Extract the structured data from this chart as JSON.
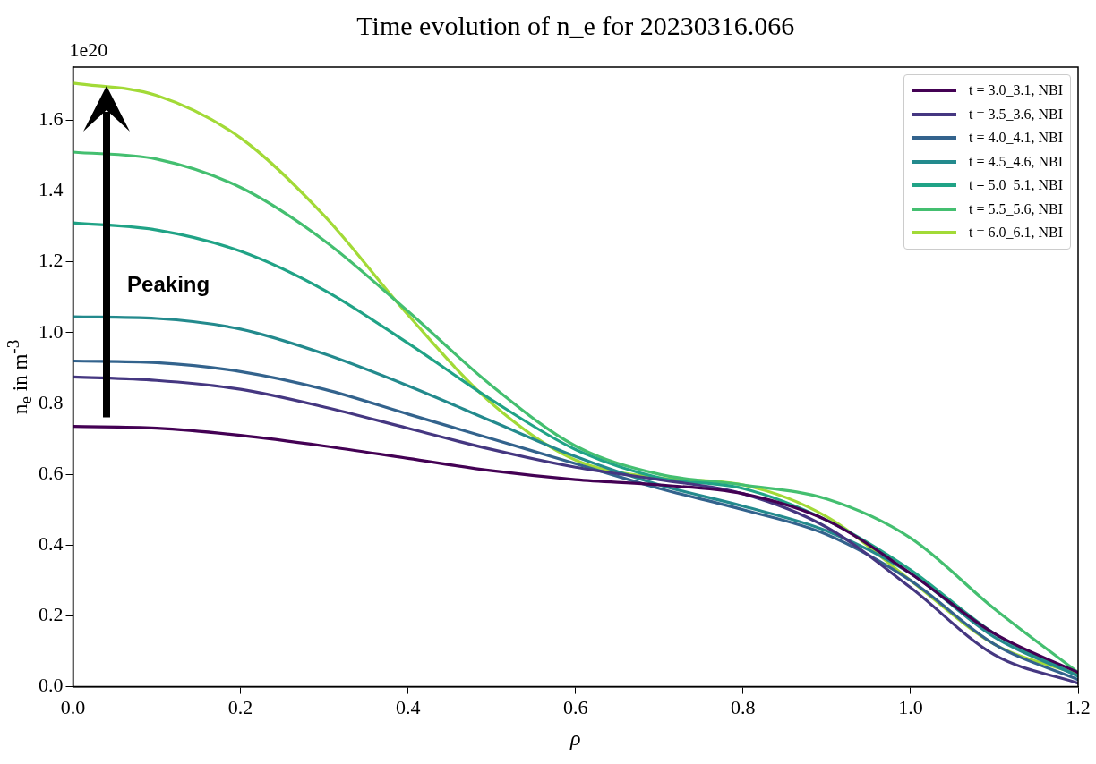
{
  "chart_data": {
    "type": "line",
    "title": "Time evolution of n_e for 20230316.066",
    "xlabel": "ρ",
    "ylabel": "n$_{e}$ in m$^{-3}$",
    "annotations": [
      "1e20",
      "Peaking"
    ],
    "x": [
      0,
      0.1,
      0.2,
      0.3,
      0.4,
      0.5,
      0.6,
      0.7,
      0.8,
      0.9,
      1.0,
      1.1,
      1.2
    ],
    "series": [
      {
        "name": "t = 3.0_3.1, NBI",
        "color": "#440154",
        "values": [
          0.735,
          0.73,
          0.71,
          0.68,
          0.645,
          0.61,
          0.585,
          0.57,
          0.545,
          0.47,
          0.32,
          0.15,
          0.04
        ]
      },
      {
        "name": "t = 3.5_3.6, NBI",
        "color": "#453781",
        "values": [
          0.875,
          0.865,
          0.84,
          0.79,
          0.73,
          0.67,
          0.62,
          0.585,
          0.545,
          0.45,
          0.28,
          0.09,
          0.01
        ]
      },
      {
        "name": "t = 4.0_4.1, NBI",
        "color": "#33638d",
        "values": [
          0.92,
          0.915,
          0.89,
          0.84,
          0.77,
          0.7,
          0.63,
          0.56,
          0.5,
          0.43,
          0.3,
          0.12,
          0.02
        ]
      },
      {
        "name": "t = 4.5_4.6, NBI",
        "color": "#238a8d",
        "values": [
          1.045,
          1.04,
          1.01,
          0.94,
          0.85,
          0.75,
          0.65,
          0.57,
          0.51,
          0.44,
          0.32,
          0.14,
          0.03
        ]
      },
      {
        "name": "t = 5.0_5.1, NBI",
        "color": "#20a386",
        "values": [
          1.31,
          1.29,
          1.23,
          1.12,
          0.97,
          0.81,
          0.67,
          0.59,
          0.56,
          0.47,
          0.33,
          0.15,
          0.03
        ]
      },
      {
        "name": "t = 5.5_5.6, NBI",
        "color": "#44bf70",
        "values": [
          1.51,
          1.49,
          1.41,
          1.26,
          1.06,
          0.85,
          0.68,
          0.6,
          0.57,
          0.53,
          0.42,
          0.22,
          0.04
        ]
      },
      {
        "name": "t = 6.0_6.1, NBI",
        "color": "#a2da37",
        "values": [
          1.705,
          1.67,
          1.55,
          1.33,
          1.05,
          0.8,
          0.64,
          0.59,
          0.57,
          0.48,
          0.3,
          0.12,
          0.035
        ]
      }
    ],
    "xlim": [
      0,
      1.2
    ],
    "xticks": [
      {
        "value": 0,
        "label": "0.0"
      },
      0.2,
      0.4,
      0.6,
      0.8,
      {
        "value": 1,
        "label": "1.0"
      },
      1.2
    ],
    "ylim": [
      0,
      1.75
    ],
    "yticks": [
      {
        "value": 0,
        "label": "0.0"
      },
      0.2,
      0.4,
      0.6,
      0.8,
      {
        "value": 1,
        "label": "1.0"
      },
      1.2,
      1.4,
      1.6
    ],
    "grid": false,
    "legend": "top right",
    "marker": "none",
    "line_style": "solid"
  }
}
